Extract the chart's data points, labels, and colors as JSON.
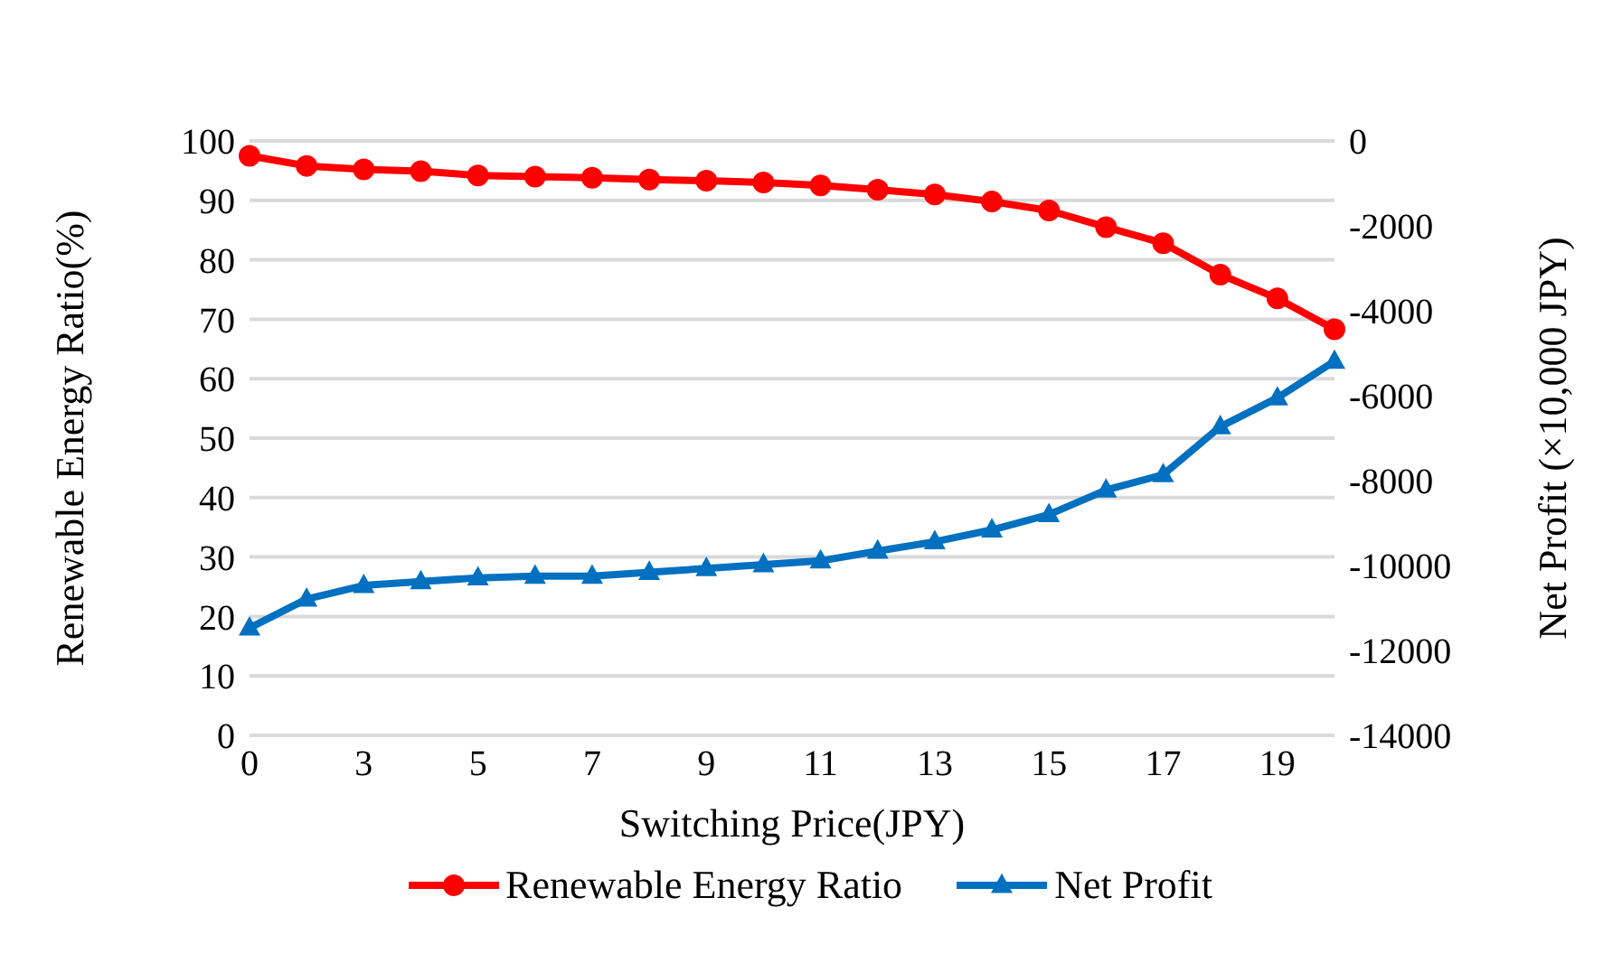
{
  "chart_data": {
    "type": "line",
    "xlabel": "Switching Price(JPY)",
    "ylabel": "Renewable Energy Ratio(%)",
    "y2label": "Net Profit (×10,000 JPY)",
    "categories": [
      "0",
      null,
      "3",
      null,
      "5",
      null,
      "7",
      null,
      "9",
      null,
      "11",
      null,
      "13",
      null,
      "15",
      null,
      "17",
      null,
      "19",
      null
    ],
    "series": [
      {
        "name": "Renewable Energy Ratio",
        "color": "#ff0000",
        "marker": "circle",
        "values": [
          97.5,
          95.8,
          95.2,
          94.9,
          94.2,
          94.0,
          93.8,
          93.5,
          93.3,
          93.0,
          92.5,
          91.8,
          91.0,
          89.8,
          88.3,
          85.5,
          82.8,
          77.5,
          73.5,
          68.3
        ]
      },
      {
        "name": "Net Profit",
        "color": "#0070c0",
        "marker": "triangle",
        "axis": "y2",
        "values": [
          -11470,
          -10790,
          -10470,
          -10380,
          -10290,
          -10250,
          -10250,
          -10160,
          -10070,
          -9980,
          -9890,
          -9660,
          -9440,
          -9160,
          -8800,
          -8220,
          -7860,
          -6730,
          -6050,
          -5190
        ]
      }
    ],
    "ylim": [
      0,
      100
    ],
    "yticks": [
      0,
      10,
      20,
      30,
      40,
      50,
      60,
      70,
      80,
      90,
      100
    ],
    "y2lim": [
      -14000,
      0
    ],
    "y2ticks": [
      -14000,
      -12000,
      -10000,
      -8000,
      -6000,
      -4000,
      -2000,
      0
    ],
    "grid": "y",
    "legend": "bottom",
    "line_style": "solid"
  }
}
